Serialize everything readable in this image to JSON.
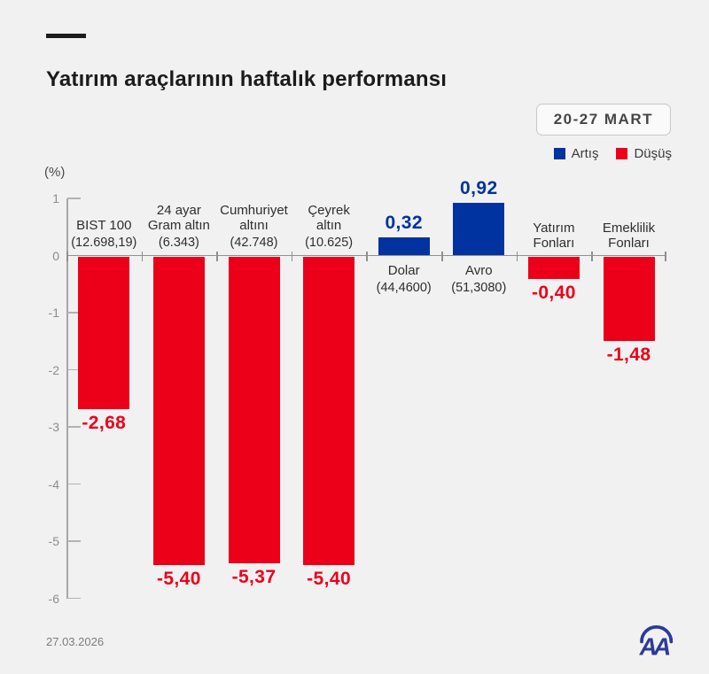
{
  "header": {
    "title": "Yatırım araçlarının haftalık performansı",
    "date_badge": "20-27 MART"
  },
  "legend": {
    "increase_label": "Artış",
    "decrease_label": "Düşüş"
  },
  "palette": {
    "increase_color": "#0032a0",
    "decrease_color": "#ec0019",
    "axis_color": "#a6a6a8",
    "background": "#f1f1f2"
  },
  "footer": {
    "date": "27.03.2026",
    "logo_name": "aa-anadolu-agency-logo"
  },
  "chart_data": {
    "type": "bar",
    "title": "Yatırım araçlarının haftalık performansı",
    "unit_label": "(%)",
    "xlabel": "",
    "ylabel": "%",
    "ylim": [
      -6,
      1
    ],
    "yticks": [
      1,
      0,
      -1,
      -2,
      -3,
      -4,
      -5,
      -6
    ],
    "grid": false,
    "legend_position": "top-right",
    "categories": [
      "BIST 100",
      "24 ayar Gram altın",
      "Cumhuriyet altını",
      "Çeyrek altın",
      "Dolar",
      "Avro",
      "Yatırım Fonları",
      "Emeklilik Fonları"
    ],
    "values": [
      -2.68,
      -5.4,
      -5.37,
      -5.4,
      0.32,
      0.92,
      -0.4,
      -1.48
    ],
    "bars": [
      {
        "label_lines": [
          "BIST 100"
        ],
        "detail": "(12.698,19)",
        "value": -2.68,
        "value_label": "-2,68"
      },
      {
        "label_lines": [
          "24 ayar",
          "Gram altın"
        ],
        "detail": "(6.343)",
        "value": -5.4,
        "value_label": "-5,40"
      },
      {
        "label_lines": [
          "Cumhuriyet",
          "altını"
        ],
        "detail": "(42.748)",
        "value": -5.37,
        "value_label": "-5,37"
      },
      {
        "label_lines": [
          "Çeyrek",
          "altın"
        ],
        "detail": "(10.625)",
        "value": -5.4,
        "value_label": "-5,40"
      },
      {
        "label_lines": [
          "Dolar"
        ],
        "detail": "(44,4600)",
        "value": 0.32,
        "value_label": "0,32"
      },
      {
        "label_lines": [
          "Avro"
        ],
        "detail": "(51,3080)",
        "value": 0.92,
        "value_label": "0,92"
      },
      {
        "label_lines": [
          "Yatırım",
          "Fonları"
        ],
        "detail": null,
        "value": -0.4,
        "value_label": "-0,40"
      },
      {
        "label_lines": [
          "Emeklilik",
          "Fonları"
        ],
        "detail": null,
        "value": -1.48,
        "value_label": "-1,48"
      }
    ]
  }
}
